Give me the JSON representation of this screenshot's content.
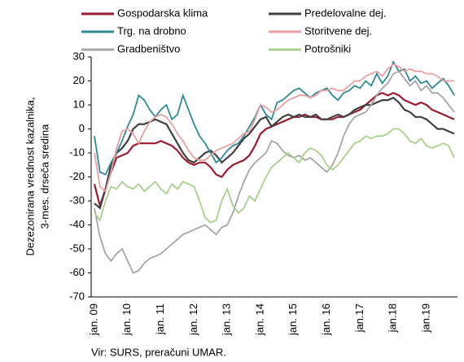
{
  "chart_data": {
    "type": "line",
    "y_label": [
      "Dezezonirana vrednost kazalnika,",
      "3-mes. drseča sredina"
    ],
    "source": "Vir: SURS, preračuni UMAR.",
    "categories": [
      "jan. 09",
      null,
      null,
      null,
      null,
      null,
      "jan. 10",
      null,
      null,
      null,
      null,
      null,
      "jan. 11",
      null,
      null,
      null,
      null,
      null,
      "jan. 12",
      null,
      null,
      null,
      null,
      null,
      "jan. 13",
      null,
      null,
      null,
      null,
      null,
      "jan. 14",
      null,
      null,
      null,
      null,
      null,
      "jan. 15",
      null,
      null,
      null,
      null,
      null,
      "jan. 16",
      null,
      null,
      null,
      null,
      null,
      "jan.17",
      null,
      null,
      null,
      null,
      null,
      "jan.18",
      null,
      null,
      null,
      null,
      null,
      "jan.19",
      null,
      null,
      null,
      null,
      null
    ],
    "ylim": [
      -70,
      30
    ],
    "yticks": [
      -70,
      -60,
      -50,
      -40,
      -30,
      -20,
      -10,
      0,
      10,
      20,
      30
    ],
    "series": [
      {
        "name": "Gospodarska klima",
        "color": "#9b1b30",
        "values": [
          -23,
          -32,
          -25,
          -18,
          -12,
          -11,
          -10,
          -7,
          -6,
          -6,
          -6,
          -6,
          -5,
          -6,
          -7,
          -9,
          -12,
          -14,
          -15,
          -14,
          -14,
          -16,
          -19,
          -20,
          -17,
          -15,
          -14,
          -13,
          -11,
          -7,
          -2,
          0,
          1,
          2,
          3,
          4,
          5,
          5,
          6,
          5,
          5,
          4,
          4,
          4,
          5,
          5,
          6,
          7,
          8,
          10,
          12,
          14,
          15,
          14,
          15,
          14,
          12,
          11,
          10,
          11,
          10,
          8,
          7,
          6,
          5,
          4
        ]
      },
      {
        "name": "Predelovalne dej.",
        "color": "#404040",
        "values": [
          -31,
          -33,
          -25,
          -15,
          -10,
          -8,
          -5,
          0,
          2,
          2,
          3,
          4,
          3,
          2,
          -2,
          -6,
          -10,
          -13,
          -14,
          -12,
          -10,
          -9,
          -11,
          -14,
          -12,
          -10,
          -7,
          -4,
          -2,
          1,
          4,
          5,
          1,
          3,
          5,
          6,
          5,
          6,
          5,
          5,
          6,
          4,
          4,
          5,
          6,
          5,
          6,
          8,
          9,
          10,
          10,
          11,
          12,
          12,
          13,
          11,
          8,
          7,
          5,
          5,
          4,
          2,
          0,
          0,
          -1,
          -2
        ]
      },
      {
        "name": "Trg. na drobno",
        "color": "#2e8b94",
        "values": [
          -3,
          -18,
          -19,
          -14,
          -10,
          -5,
          1,
          6,
          14,
          12,
          8,
          5,
          8,
          10,
          4,
          6,
          14,
          8,
          2,
          -3,
          -6,
          -10,
          -14,
          -12,
          -9,
          -7,
          -6,
          -3,
          1,
          5,
          10,
          6,
          4,
          11,
          12,
          14,
          16,
          17,
          15,
          13,
          15,
          16,
          17,
          14,
          12,
          15,
          16,
          18,
          17,
          20,
          18,
          23,
          19,
          22,
          28,
          24,
          25,
          20,
          22,
          19,
          20,
          17,
          19,
          21,
          18,
          14
        ]
      },
      {
        "name": "Storitvene dej.",
        "color": "#e8a0a0",
        "values": [
          -10,
          -24,
          -26,
          -18,
          -8,
          -1,
          0,
          -2,
          -6,
          -1,
          3,
          5,
          6,
          5,
          2,
          -2,
          -5,
          -9,
          -12,
          -13,
          -13,
          -11,
          -9,
          -8,
          -7,
          -6,
          -4,
          -2,
          -1,
          4,
          10,
          9,
          7,
          8,
          10,
          12,
          13,
          14,
          14,
          13,
          14,
          16,
          16,
          17,
          16,
          16,
          18,
          20,
          20,
          22,
          23,
          24,
          22,
          25,
          27,
          26,
          24,
          25,
          24,
          24,
          23,
          23,
          22,
          20,
          20,
          20
        ]
      },
      {
        "name": "Gradbeništvo",
        "color": "#a6a6a6",
        "values": [
          -33,
          -45,
          -52,
          -55,
          -52,
          -50,
          -55,
          -60,
          -59,
          -56,
          -54,
          -53,
          -52,
          -50,
          -48,
          -46,
          -44,
          -43,
          -42,
          -41,
          -40,
          -42,
          -44,
          -41,
          -40,
          -35,
          -28,
          -22,
          -17,
          -14,
          -12,
          -10,
          -5,
          -6,
          -9,
          -11,
          -12,
          -11,
          -13,
          -12,
          -14,
          -16,
          -18,
          -15,
          -10,
          -3,
          2,
          5,
          6,
          7,
          10,
          14,
          17,
          19,
          23,
          24,
          21,
          18,
          20,
          16,
          18,
          15,
          15,
          13,
          10,
          7
        ]
      },
      {
        "name": "Potrošniki",
        "color": "#a8d08d",
        "values": [
          -35,
          -38,
          -30,
          -24,
          -25,
          -22,
          -24,
          -25,
          -23,
          -26,
          -24,
          -22,
          -25,
          -27,
          -23,
          -25,
          -22,
          -23,
          -24,
          -30,
          -37,
          -39,
          -38,
          -30,
          -25,
          -32,
          -35,
          -33,
          -28,
          -30,
          -25,
          -20,
          -16,
          -14,
          -12,
          -10,
          -12,
          -14,
          -10,
          -8,
          -9,
          -11,
          -15,
          -17,
          -15,
          -12,
          -9,
          -6,
          -5,
          -3,
          -4,
          -3,
          -3,
          -2,
          0,
          0,
          -2,
          -5,
          -6,
          -4,
          -7,
          -8,
          -7,
          -6,
          -7,
          -12
        ]
      }
    ]
  }
}
